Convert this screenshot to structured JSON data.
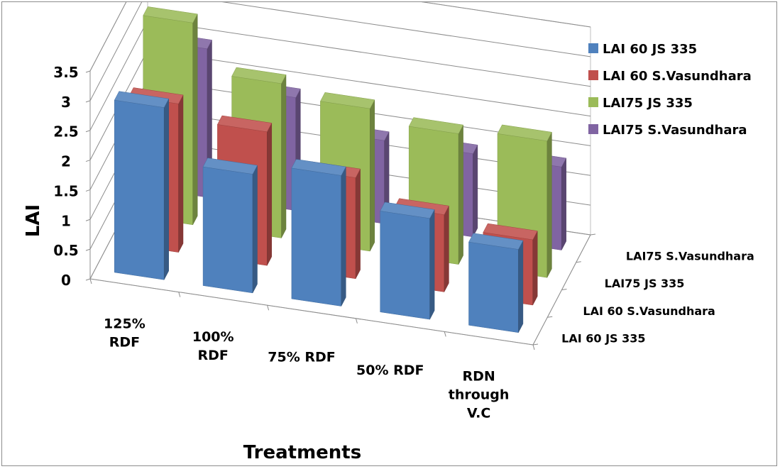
{
  "chart_data": {
    "type": "bar",
    "subtype": "3d-column",
    "categories": [
      [
        "125%",
        "RDF"
      ],
      [
        "100%",
        "RDF"
      ],
      [
        "75% RDF"
      ],
      [
        "50% RDF"
      ],
      [
        "RDN",
        "through",
        "V.C"
      ]
    ],
    "series": [
      {
        "name": "LAI 60 JS 335",
        "color": "#4F81BD",
        "values": [
          2.9,
          2.0,
          2.2,
          1.7,
          1.4
        ]
      },
      {
        "name": "LAI 60 S.Vasundhara",
        "color": "#C0504D",
        "values": [
          2.5,
          2.25,
          1.7,
          1.3,
          1.1
        ]
      },
      {
        "name": "LAI75 JS 335",
        "color": "#9BBB59",
        "values": [
          3.4,
          2.6,
          2.4,
          2.2,
          2.3
        ]
      },
      {
        "name": "LAI75 S.Vasundhara",
        "color": "#8064A2",
        "values": [
          2.5,
          1.9,
          1.4,
          1.4,
          1.4
        ]
      }
    ],
    "xlabel": "Treatments",
    "ylabel": "LAI",
    "yticks": [
      "0",
      "0.5",
      "1",
      "1.5",
      "2",
      "2.5",
      "3",
      "3.5"
    ],
    "ylim": [
      0,
      3.5
    ],
    "depth_labels": [
      "LAI 60 JS 335",
      "LAI 60 S.Vasundhara",
      "LAI75 JS 335",
      "LAI75 S.Vasundhara"
    ],
    "grid": true,
    "legend_position": "right"
  }
}
